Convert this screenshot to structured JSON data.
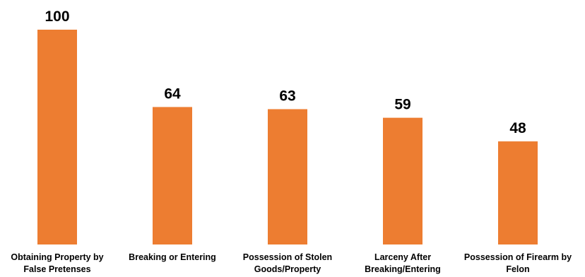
{
  "chart_data": {
    "type": "bar",
    "categories": [
      [
        "Obtaining Property by",
        "False Pretenses"
      ],
      [
        "Breaking or Entering"
      ],
      [
        "Possession of Stolen",
        "Goods/Property"
      ],
      [
        "Larceny After",
        "Breaking/Entering"
      ],
      [
        "Possession of Firearm by",
        "Felon"
      ]
    ],
    "values": [
      100,
      64,
      63,
      59,
      48
    ],
    "data_labels": [
      "100",
      "64",
      "63",
      "59",
      "48"
    ],
    "title": "",
    "xlabel": "",
    "ylabel": "",
    "ylim": [
      0,
      100
    ],
    "bar_color": "#ED7D31",
    "grid": false,
    "legend": "none"
  }
}
